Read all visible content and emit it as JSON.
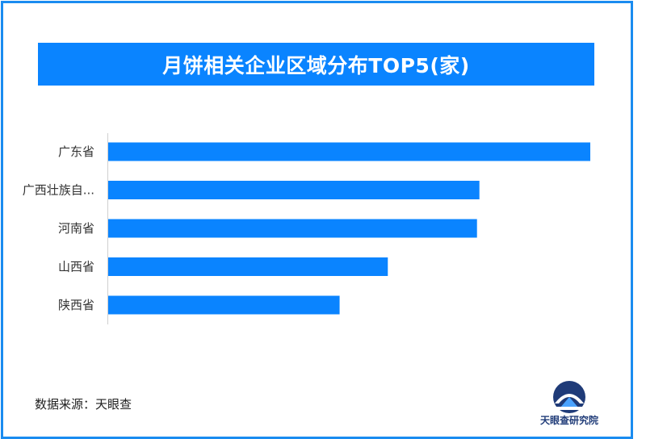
{
  "title": "月饼相关企业区域分布TOP5(家)",
  "source_label": "数据来源：天眼查",
  "logo_text": "天眼查研究院",
  "colors": {
    "bar": "#0a84ff",
    "frame": "#1a8cf0",
    "title_bg": "#0a84ff"
  },
  "chart_data": {
    "type": "bar",
    "orientation": "horizontal",
    "categories": [
      "广东省",
      "广西壮族自...",
      "河南省",
      "山西省",
      "陕西省"
    ],
    "values": [
      100,
      77,
      76.5,
      58,
      48
    ],
    "xlim": [
      0,
      100
    ],
    "grid": false,
    "legend": "none"
  }
}
